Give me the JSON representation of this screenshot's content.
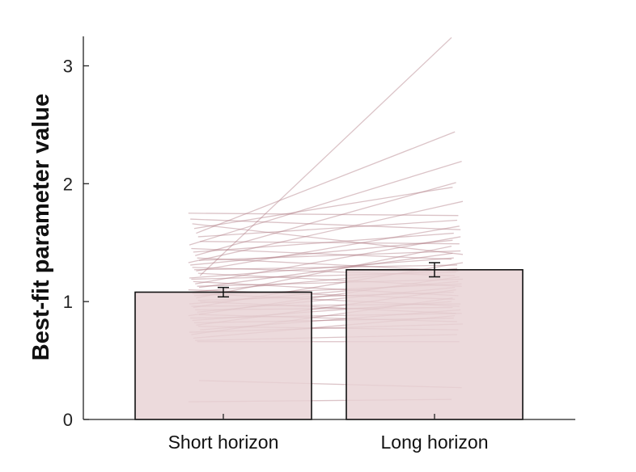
{
  "chart_data": {
    "type": "bar",
    "ylabel": "Best-fit parameter value",
    "xlabel": "",
    "categories": [
      "Short horizon",
      "Long horizon"
    ],
    "values": [
      1.08,
      1.27
    ],
    "error": [
      0.04,
      0.06
    ],
    "ylim": [
      0,
      3.25
    ],
    "yticks": [
      0,
      1,
      2,
      3
    ],
    "grid": false,
    "colors": {
      "bar_fill": "#e8d2d4",
      "bar_edge": "#111111",
      "subject_line": "#b07a83"
    },
    "subjects": [
      [
        0.15,
        0.17
      ],
      [
        0.33,
        0.27
      ],
      [
        0.66,
        0.66
      ],
      [
        0.67,
        0.72
      ],
      [
        0.69,
        0.88
      ],
      [
        0.72,
        1.03
      ],
      [
        0.74,
        0.81
      ],
      [
        0.76,
        0.93
      ],
      [
        0.79,
        0.76
      ],
      [
        0.8,
        1.1
      ],
      [
        0.82,
        0.86
      ],
      [
        0.84,
        1.0
      ],
      [
        0.86,
        0.9
      ],
      [
        0.88,
        1.21
      ],
      [
        0.89,
        0.83
      ],
      [
        0.91,
        1.12
      ],
      [
        0.93,
        0.95
      ],
      [
        0.95,
        1.33
      ],
      [
        0.96,
        0.98
      ],
      [
        0.98,
        1.17
      ],
      [
        1.0,
        0.9
      ],
      [
        1.01,
        1.08
      ],
      [
        1.03,
        1.47
      ],
      [
        1.05,
        1.15
      ],
      [
        1.07,
        0.96
      ],
      [
        1.08,
        1.28
      ],
      [
        1.1,
        1.02
      ],
      [
        1.12,
        1.41
      ],
      [
        1.13,
        1.19
      ],
      [
        1.15,
        1.55
      ],
      [
        1.17,
        1.05
      ],
      [
        1.19,
        1.25
      ],
      [
        1.2,
        1.37
      ],
      [
        1.22,
        3.24
      ],
      [
        1.24,
        1.13
      ],
      [
        1.26,
        1.64
      ],
      [
        1.27,
        1.31
      ],
      [
        1.29,
        1.22
      ],
      [
        1.31,
        1.52
      ],
      [
        1.33,
        1.85
      ],
      [
        1.35,
        1.43
      ],
      [
        1.37,
        1.26
      ],
      [
        1.39,
        2.01
      ],
      [
        1.42,
        1.58
      ],
      [
        1.45,
        1.36
      ],
      [
        1.48,
        2.19
      ],
      [
        1.51,
        1.49
      ],
      [
        1.55,
        1.69
      ],
      [
        1.58,
        2.44
      ],
      [
        1.62,
        1.97
      ],
      [
        1.66,
        1.4
      ],
      [
        1.7,
        1.61
      ],
      [
        1.75,
        1.73
      ]
    ]
  }
}
